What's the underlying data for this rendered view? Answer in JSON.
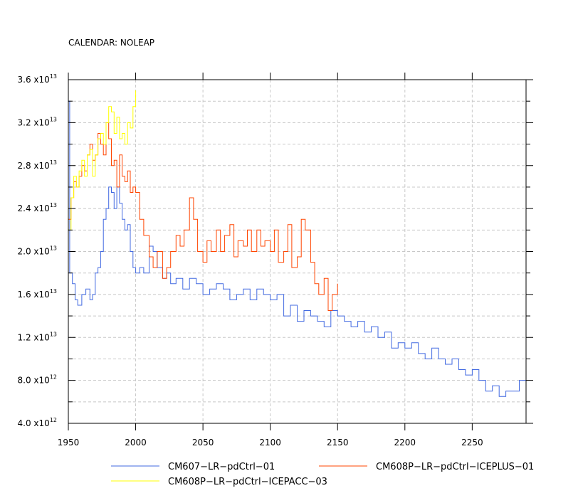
{
  "chart_data": {
    "type": "line",
    "title": "CALENDAR: NOLEAP",
    "xlabel": "",
    "ylabel": "",
    "xlim": [
      1950,
      2290
    ],
    "ylim": [
      4000000000000.0,
      36000000000000.0
    ],
    "x_ticks": [
      1950,
      2000,
      2050,
      2100,
      2150,
      2200,
      2250
    ],
    "x_tick_labels": [
      "1950",
      "2000",
      "2050",
      "2100",
      "2150",
      "2200",
      "2250"
    ],
    "y_ticks": [
      {
        "value": 4000000000000.0,
        "mant": "4.0",
        "exp": "12"
      },
      {
        "value": 8000000000000.0,
        "mant": "8.0",
        "exp": "12"
      },
      {
        "value": 12000000000000.0,
        "mant": "1.2",
        "exp": "13"
      },
      {
        "value": 16000000000000.0,
        "mant": "1.6",
        "exp": "13"
      },
      {
        "value": 20000000000000.0,
        "mant": "2.0",
        "exp": "13"
      },
      {
        "value": 24000000000000.0,
        "mant": "2.4",
        "exp": "13"
      },
      {
        "value": 28000000000000.0,
        "mant": "2.8",
        "exp": "13"
      },
      {
        "value": 32000000000000.0,
        "mant": "3.2",
        "exp": "13"
      },
      {
        "value": 36000000000000.0,
        "mant": "3.6",
        "exp": "13"
      }
    ],
    "y_minor_ticks": [
      6000000000000.0,
      10000000000000.0,
      14000000000000.0,
      18000000000000.0,
      22000000000000.0,
      26000000000000.0,
      30000000000000.0,
      34000000000000.0
    ],
    "grid": true,
    "legend_position": "bottom",
    "series": [
      {
        "name": "CM607−LR−pdCtrl−01",
        "color": "#4169e1",
        "x": [
          1950,
          1951,
          1953,
          1955,
          1957,
          1960,
          1963,
          1966,
          1968,
          1970,
          1972,
          1974,
          1976,
          1978,
          1980,
          1982,
          1984,
          1986,
          1988,
          1990,
          1992,
          1994,
          1996,
          1998,
          2000,
          2003,
          2006,
          2010,
          2013,
          2016,
          2020,
          2023,
          2026,
          2030,
          2035,
          2040,
          2045,
          2050,
          2055,
          2060,
          2065,
          2070,
          2075,
          2080,
          2085,
          2090,
          2095,
          2100,
          2105,
          2110,
          2115,
          2120,
          2125,
          2130,
          2135,
          2140,
          2145,
          2150,
          2155,
          2160,
          2165,
          2170,
          2175,
          2180,
          2185,
          2190,
          2195,
          2200,
          2205,
          2210,
          2215,
          2220,
          2225,
          2230,
          2235,
          2240,
          2245,
          2250,
          2255,
          2260,
          2265,
          2270,
          2275,
          2280,
          2285,
          2290
        ],
        "y": [
          34000000000000.0,
          18000000000000.0,
          17000000000000.0,
          15500000000000.0,
          15000000000000.0,
          16000000000000.0,
          16500000000000.0,
          15500000000000.0,
          16000000000000.0,
          18000000000000.0,
          18500000000000.0,
          20000000000000.0,
          23000000000000.0,
          24000000000000.0,
          26000000000000.0,
          25500000000000.0,
          24000000000000.0,
          26000000000000.0,
          24500000000000.0,
          23000000000000.0,
          22000000000000.0,
          22500000000000.0,
          20000000000000.0,
          18500000000000.0,
          18000000000000.0,
          18500000000000.0,
          18000000000000.0,
          20500000000000.0,
          20000000000000.0,
          18500000000000.0,
          17500000000000.0,
          18000000000000.0,
          17000000000000.0,
          17500000000000.0,
          16500000000000.0,
          17500000000000.0,
          17000000000000.0,
          16000000000000.0,
          16500000000000.0,
          17000000000000.0,
          16500000000000.0,
          15500000000000.0,
          16000000000000.0,
          16500000000000.0,
          15500000000000.0,
          16500000000000.0,
          16000000000000.0,
          15500000000000.0,
          16000000000000.0,
          14000000000000.0,
          15000000000000.0,
          13500000000000.0,
          14500000000000.0,
          14000000000000.0,
          13500000000000.0,
          13000000000000.0,
          14500000000000.0,
          14000000000000.0,
          13500000000000.0,
          13000000000000.0,
          13500000000000.0,
          12500000000000.0,
          13000000000000.0,
          12000000000000.0,
          12500000000000.0,
          11000000000000.0,
          11500000000000.0,
          11000000000000.0,
          11500000000000.0,
          10500000000000.0,
          10000000000000.0,
          11000000000000.0,
          10000000000000.0,
          9500000000000.0,
          10000000000000.0,
          9000000000000.0,
          8500000000000.0,
          9000000000000.0,
          8000000000000.0,
          7000000000000.0,
          7500000000000.0,
          6500000000000.0,
          7000000000000.0,
          7000000000000.0,
          8000000000000.0,
          5500000000000.0
        ]
      },
      {
        "name": "CM608P−LR−pdCtrl−ICEPLUS−01",
        "color": "#ff4500",
        "x": [
          1950,
          1952,
          1954,
          1956,
          1958,
          1960,
          1962,
          1964,
          1966,
          1968,
          1970,
          1972,
          1974,
          1976,
          1978,
          1980,
          1982,
          1984,
          1986,
          1988,
          1990,
          1992,
          1994,
          1996,
          1998,
          2000,
          2003,
          2006,
          2010,
          2013,
          2016,
          2020,
          2023,
          2026,
          2030,
          2033,
          2036,
          2040,
          2043,
          2046,
          2050,
          2053,
          2056,
          2060,
          2063,
          2066,
          2070,
          2073,
          2076,
          2080,
          2083,
          2086,
          2090,
          2093,
          2096,
          2100,
          2103,
          2106,
          2110,
          2113,
          2116,
          2120,
          2123,
          2126,
          2130,
          2133,
          2136,
          2140,
          2143,
          2146,
          2150
        ],
        "y": [
          23000000000000.0,
          25000000000000.0,
          26500000000000.0,
          26000000000000.0,
          27000000000000.0,
          28000000000000.0,
          27500000000000.0,
          29000000000000.0,
          30000000000000.0,
          28500000000000.0,
          29000000000000.0,
          31000000000000.0,
          30000000000000.0,
          29000000000000.0,
          32000000000000.0,
          30500000000000.0,
          28000000000000.0,
          28500000000000.0,
          26000000000000.0,
          29000000000000.0,
          27000000000000.0,
          26500000000000.0,
          27500000000000.0,
          25500000000000.0,
          26000000000000.0,
          25500000000000.0,
          23000000000000.0,
          21500000000000.0,
          19500000000000.0,
          18500000000000.0,
          20000000000000.0,
          17500000000000.0,
          18500000000000.0,
          20000000000000.0,
          21500000000000.0,
          20500000000000.0,
          22000000000000.0,
          25000000000000.0,
          23000000000000.0,
          20000000000000.0,
          19000000000000.0,
          21000000000000.0,
          20000000000000.0,
          22000000000000.0,
          20000000000000.0,
          21500000000000.0,
          22500000000000.0,
          19500000000000.0,
          21000000000000.0,
          20500000000000.0,
          22000000000000.0,
          20000000000000.0,
          22000000000000.0,
          20500000000000.0,
          21000000000000.0,
          20000000000000.0,
          22000000000000.0,
          19000000000000.0,
          20000000000000.0,
          22500000000000.0,
          18500000000000.0,
          19500000000000.0,
          23000000000000.0,
          22000000000000.0,
          19000000000000.0,
          17000000000000.0,
          16000000000000.0,
          17500000000000.0,
          14500000000000.0,
          16000000000000.0,
          17000000000000.0
        ]
      },
      {
        "name": "CM608P−LR−pdCtrl−ICEPACC−03",
        "color": "#ffff00",
        "x": [
          1950,
          1952,
          1954,
          1956,
          1958,
          1960,
          1962,
          1964,
          1966,
          1968,
          1970,
          1972,
          1974,
          1976,
          1978,
          1980,
          1982,
          1984,
          1986,
          1988,
          1990,
          1992,
          1994,
          1996,
          1998,
          2000
        ],
        "y": [
          22000000000000.0,
          25000000000000.0,
          27000000000000.0,
          26000000000000.0,
          27500000000000.0,
          28500000000000.0,
          27000000000000.0,
          29000000000000.0,
          29500000000000.0,
          27000000000000.0,
          29000000000000.0,
          30500000000000.0,
          31000000000000.0,
          30000000000000.0,
          32000000000000.0,
          33500000000000.0,
          33000000000000.0,
          31000000000000.0,
          32500000000000.0,
          30500000000000.0,
          31000000000000.0,
          30000000000000.0,
          32000000000000.0,
          31500000000000.0,
          33500000000000.0,
          35000000000000.0
        ]
      }
    ]
  }
}
